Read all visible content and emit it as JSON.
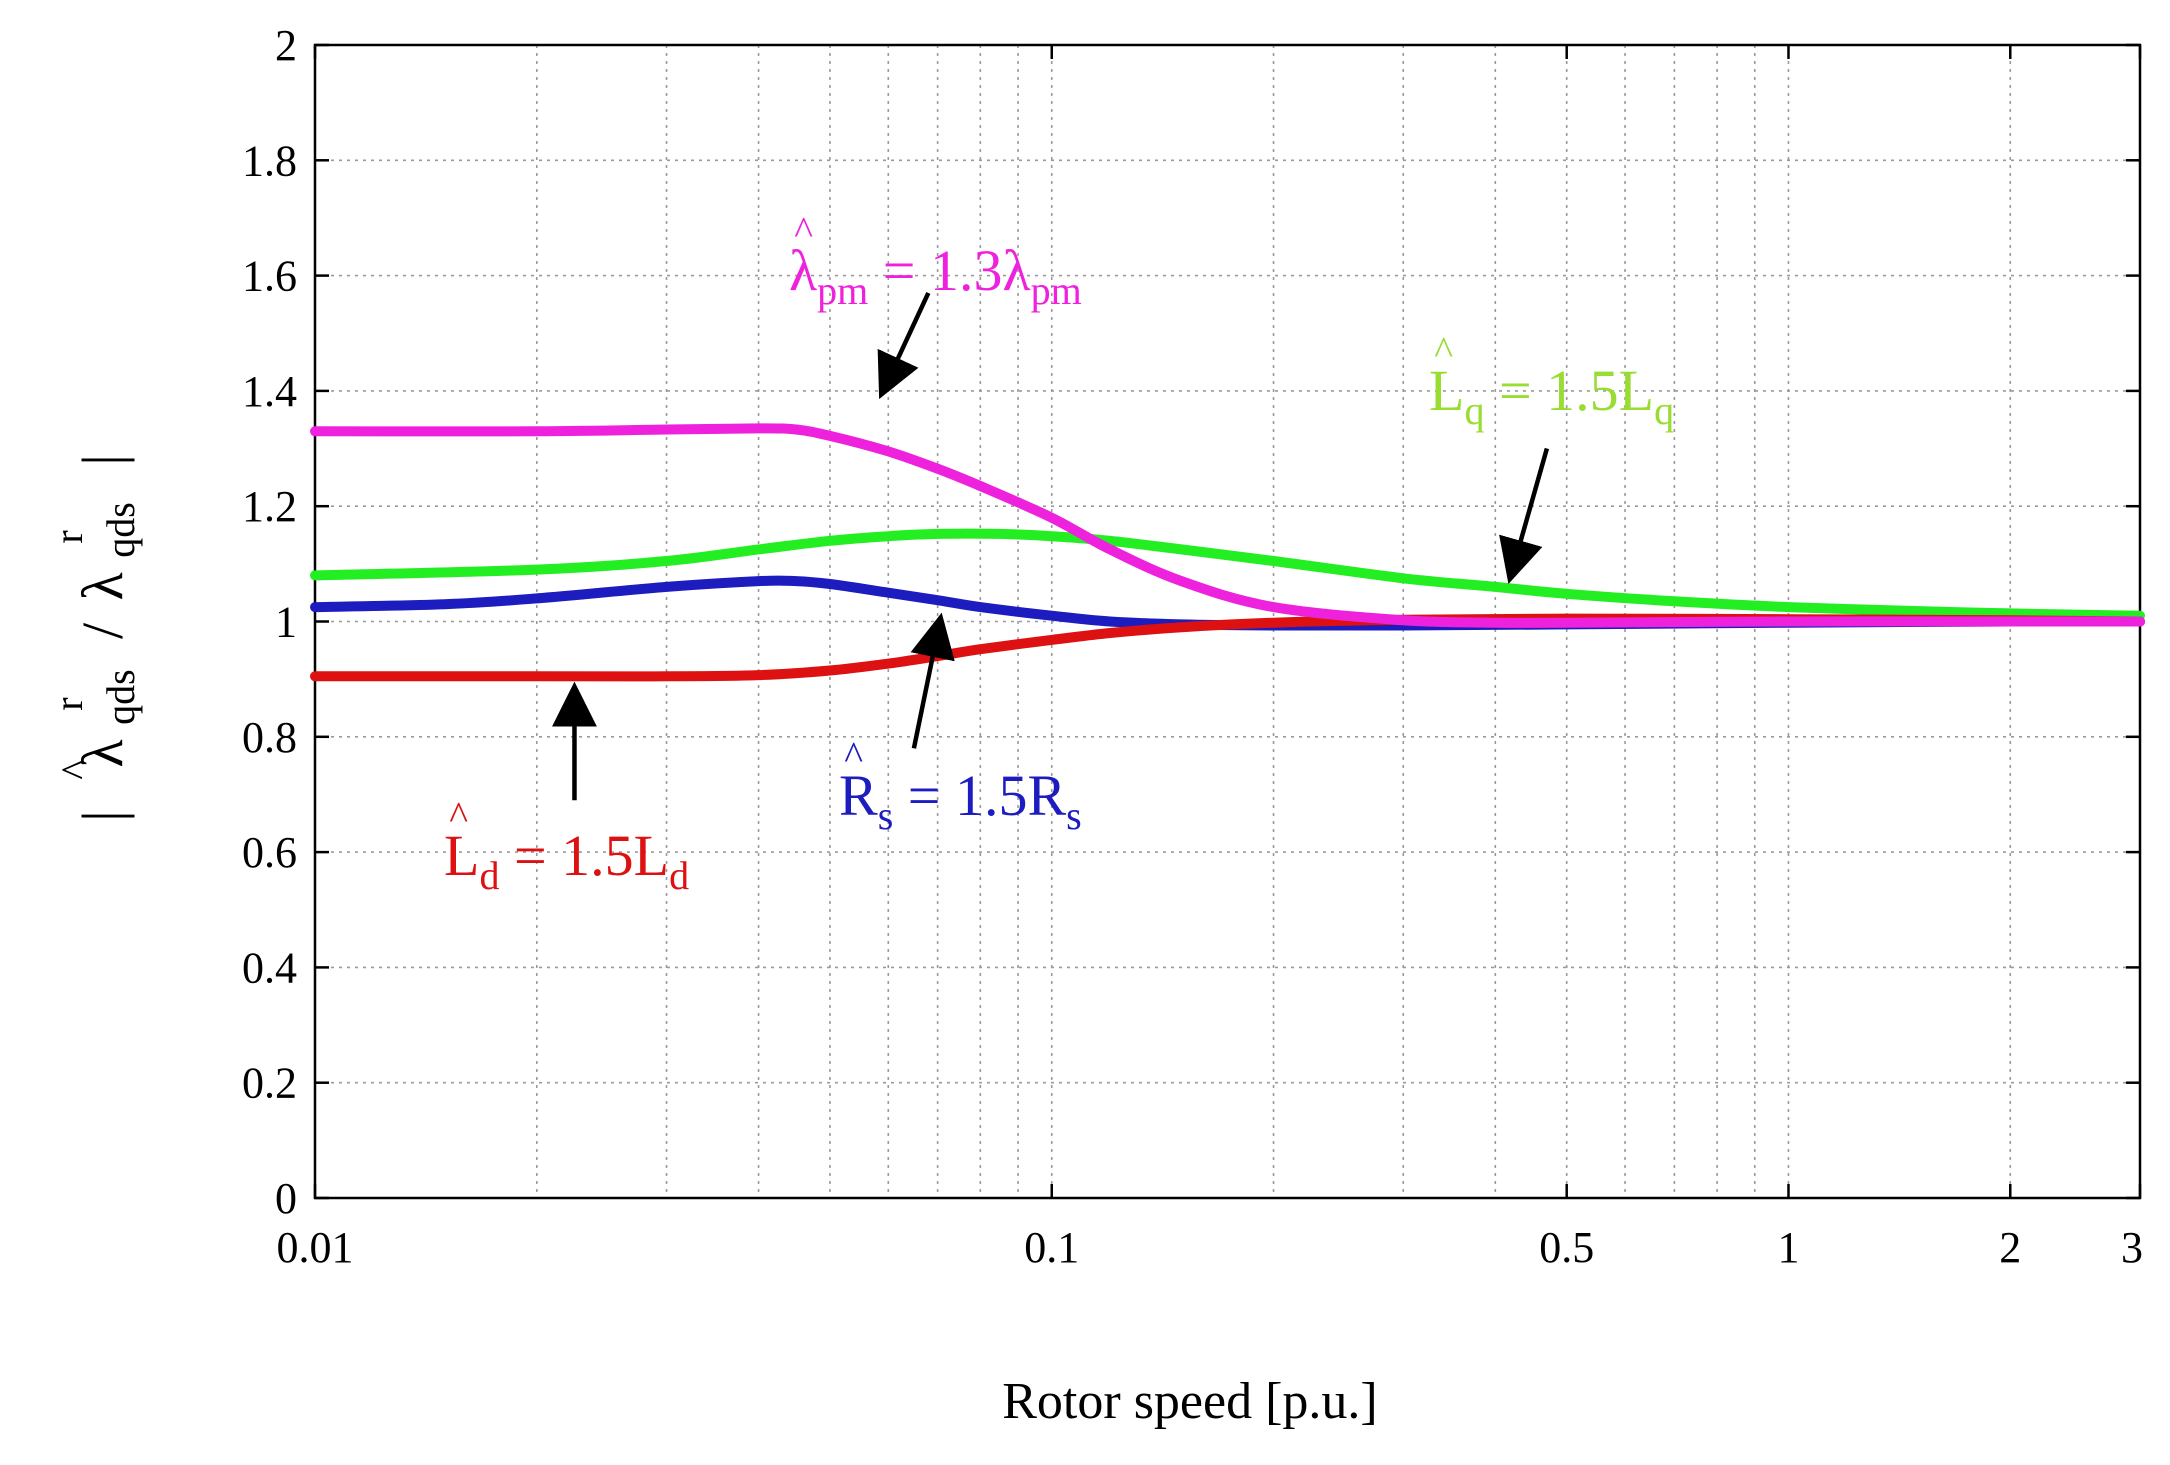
{
  "chart_data": {
    "type": "line",
    "title": "",
    "xlabel": "Rotor speed [p.u.]",
    "ylabel": {
      "bar_left": "|",
      "hat": "^",
      "lambda": "λ",
      "sub": "qds",
      "sup": "r",
      "slash": "/",
      "lambda2": "λ",
      "sub2": "qds",
      "sup2": "r",
      "bar_right": "|"
    },
    "xscale": "log",
    "xlim": [
      0.01,
      3
    ],
    "ylim": [
      0,
      2
    ],
    "x_ticks": [
      {
        "value": 0.01,
        "label": "0.01"
      },
      {
        "value": 0.1,
        "label": "0.1"
      },
      {
        "value": 0.5,
        "label": "0.5"
      },
      {
        "value": 1,
        "label": "1"
      },
      {
        "value": 2,
        "label": "2"
      },
      {
        "value": 3,
        "label": "3"
      }
    ],
    "y_ticks": [
      {
        "value": 0,
        "label": "0"
      },
      {
        "value": 0.2,
        "label": "0.2"
      },
      {
        "value": 0.4,
        "label": "0.4"
      },
      {
        "value": 0.6,
        "label": "0.6"
      },
      {
        "value": 0.8,
        "label": "0.8"
      },
      {
        "value": 1,
        "label": "1"
      },
      {
        "value": 1.2,
        "label": "1.2"
      },
      {
        "value": 1.4,
        "label": "1.4"
      },
      {
        "value": 1.6,
        "label": "1.6"
      },
      {
        "value": 1.8,
        "label": "1.8"
      },
      {
        "value": 2,
        "label": "2"
      }
    ],
    "grid": true,
    "series": [
      {
        "name": "green",
        "color": "#22ee22",
        "x": [
          0.01,
          0.02,
          0.03,
          0.04,
          0.05,
          0.06,
          0.07,
          0.085,
          0.1,
          0.12,
          0.15,
          0.2,
          0.3,
          0.4,
          0.5,
          0.7,
          1,
          1.5,
          2,
          3
        ],
        "y": [
          1.08,
          1.09,
          1.105,
          1.125,
          1.14,
          1.148,
          1.152,
          1.152,
          1.148,
          1.14,
          1.125,
          1.105,
          1.075,
          1.06,
          1.048,
          1.035,
          1.025,
          1.018,
          1.014,
          1.01
        ]
      },
      {
        "name": "blue",
        "color": "#1c1cbf",
        "x": [
          0.01,
          0.015,
          0.02,
          0.03,
          0.04,
          0.045,
          0.05,
          0.06,
          0.07,
          0.08,
          0.1,
          0.12,
          0.15,
          0.2,
          0.3,
          0.5,
          1,
          2,
          3
        ],
        "y": [
          1.025,
          1.03,
          1.04,
          1.06,
          1.07,
          1.07,
          1.065,
          1.05,
          1.037,
          1.025,
          1.01,
          1.0,
          0.995,
          0.993,
          0.993,
          0.995,
          0.998,
          1.0,
          1.0
        ]
      },
      {
        "name": "red",
        "color": "#dd1111",
        "x": [
          0.01,
          0.02,
          0.03,
          0.04,
          0.05,
          0.06,
          0.07,
          0.08,
          0.1,
          0.12,
          0.15,
          0.2,
          0.3,
          0.5,
          1,
          2,
          3
        ],
        "y": [
          0.905,
          0.905,
          0.905,
          0.907,
          0.915,
          0.927,
          0.94,
          0.952,
          0.968,
          0.98,
          0.99,
          0.998,
          1.003,
          1.005,
          1.004,
          1.002,
          1.0
        ]
      },
      {
        "name": "magenta",
        "color": "#ee22dd",
        "x": [
          0.01,
          0.02,
          0.03,
          0.04,
          0.045,
          0.05,
          0.06,
          0.07,
          0.08,
          0.1,
          0.12,
          0.15,
          0.2,
          0.3,
          0.4,
          0.5,
          1,
          2,
          3
        ],
        "y": [
          1.33,
          1.33,
          1.333,
          1.335,
          1.333,
          1.322,
          1.295,
          1.265,
          1.235,
          1.18,
          1.125,
          1.07,
          1.025,
          1.002,
          0.998,
          0.998,
          1.0,
          1.0,
          1.0
        ]
      }
    ],
    "annotations": [
      {
        "id": "lambda-pm",
        "color": "#ee22dd",
        "arrow_from": [
          0.068,
          1.57
        ],
        "arrow_to": [
          0.059,
          1.4
        ],
        "label": {
          "hat": "^",
          "main": "λ",
          "sub": "pm",
          "eq": " = 1.3",
          "main2": "λ",
          "sub2": "pm"
        }
      },
      {
        "id": "lq",
        "color": "#99dd33",
        "arrow_from": [
          0.47,
          1.3
        ],
        "arrow_to": [
          0.42,
          1.08
        ],
        "label": {
          "hat": "^",
          "main": "L",
          "sub": "q",
          "eq": " = 1.5",
          "main2": "L",
          "sub2": "q"
        }
      },
      {
        "id": "rs",
        "color": "#1c1cbf",
        "arrow_from": [
          0.065,
          0.78
        ],
        "arrow_to": [
          0.0705,
          1.0
        ],
        "label": {
          "hat": "^",
          "main": "R",
          "sub": "s",
          "eq": " = 1.5",
          "main2": "R",
          "sub2": "s"
        }
      },
      {
        "id": "ld",
        "color": "#dd1111",
        "arrow_from": [
          0.0225,
          0.69
        ],
        "arrow_to": [
          0.0225,
          0.88
        ],
        "label": {
          "hat": "^",
          "main": "L",
          "sub": "d",
          "eq": " = 1.5",
          "main2": "L",
          "sub2": "d"
        }
      }
    ]
  }
}
